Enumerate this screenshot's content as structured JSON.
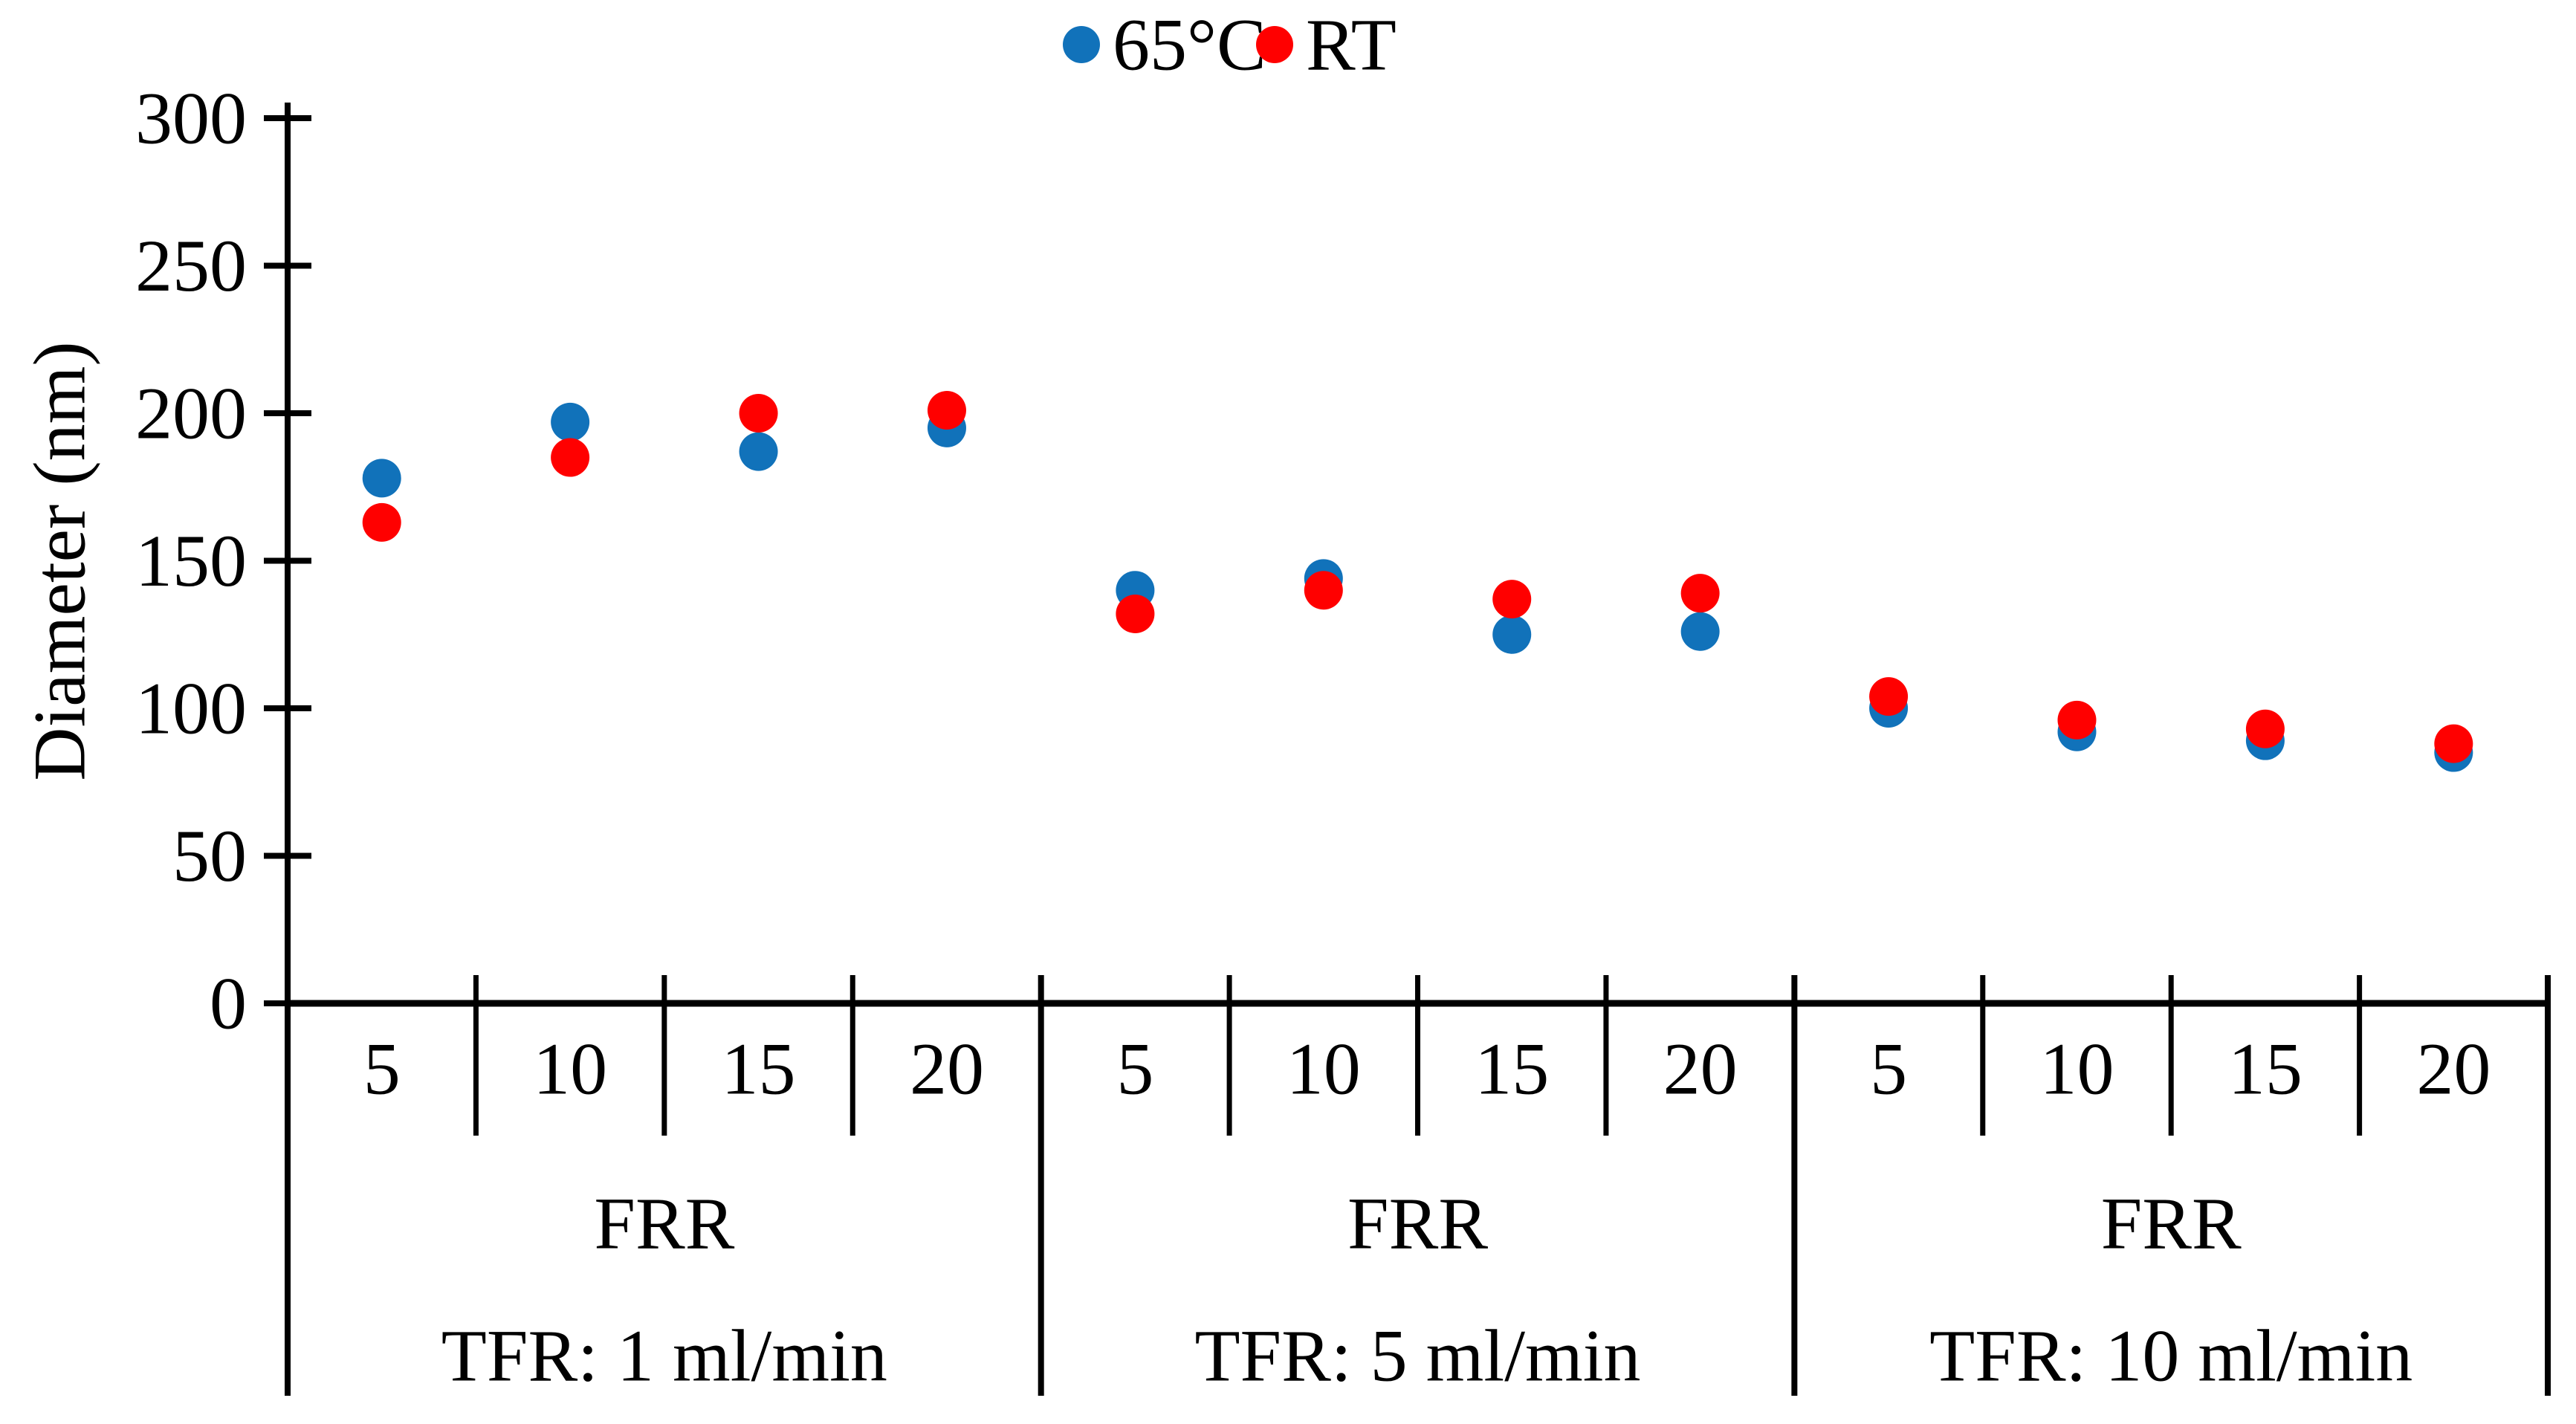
{
  "chart_data": {
    "type": "scatter",
    "title": "",
    "xlabel": "",
    "ylabel": "Diameter (nm)",
    "ylim": [
      0,
      300
    ],
    "yticks": [
      300,
      250,
      200,
      150,
      100,
      50,
      0
    ],
    "grid": false,
    "legend_position": "top-center",
    "groups": [
      {
        "tfr_label": "TFR: 1 ml/min",
        "frr_label": "FRR",
        "frr_values": [
          "5",
          "10",
          "15",
          "20"
        ]
      },
      {
        "tfr_label": "TFR: 5 ml/min",
        "frr_label": "FRR",
        "frr_values": [
          "5",
          "10",
          "15",
          "20"
        ]
      },
      {
        "tfr_label": "TFR: 10 ml/min",
        "frr_label": "FRR",
        "frr_values": [
          "5",
          "10",
          "15",
          "20"
        ]
      }
    ],
    "series": [
      {
        "name": "65°C",
        "color": "#1172BA",
        "values": [
          [
            178,
            197,
            187,
            195
          ],
          [
            140,
            144,
            125,
            126
          ],
          [
            100,
            92,
            89,
            85
          ]
        ]
      },
      {
        "name": "RT",
        "color": "#FF0000",
        "values": [
          [
            163,
            185,
            200,
            201
          ],
          [
            132,
            140,
            137,
            139
          ],
          [
            104,
            96,
            93,
            88
          ]
        ]
      }
    ]
  }
}
